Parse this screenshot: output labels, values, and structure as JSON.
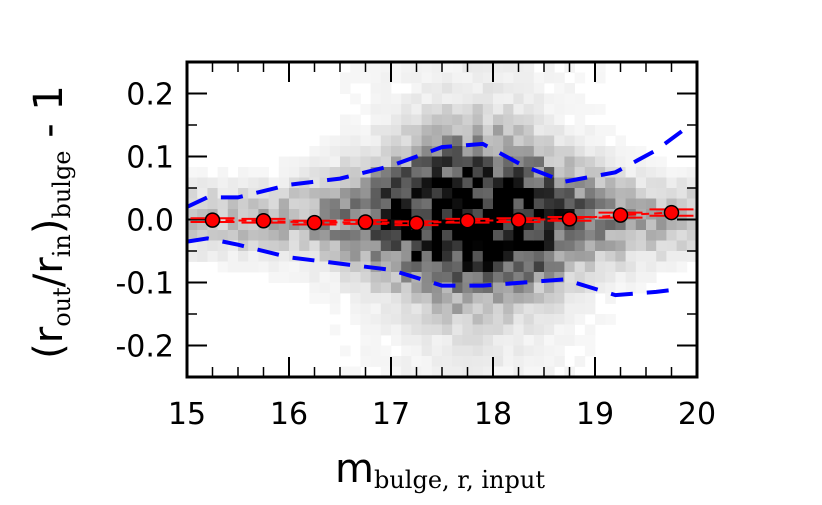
{
  "chart_data": {
    "type": "scatter",
    "title": "",
    "xlabel": {
      "main": "m",
      "sub": "bulge, r, input"
    },
    "ylabel": {
      "open": "(r",
      "sub1": "out",
      "slash": "/r",
      "sub2": "in",
      "close": ")",
      "sub3": "bulge",
      "tail": " - 1"
    },
    "xlim": [
      15,
      20
    ],
    "ylim": [
      -0.25,
      0.25
    ],
    "xticks": [
      15,
      16,
      17,
      18,
      19,
      20
    ],
    "xtick_labels": [
      "15",
      "16",
      "17",
      "18",
      "19",
      "20"
    ],
    "yticks": [
      0.2,
      0.1,
      0.0,
      -0.1,
      -0.2
    ],
    "ytick_labels": [
      "0.2",
      "0.1",
      "0.0",
      "-0.1",
      "-0.2"
    ],
    "grid": false,
    "background_density": {
      "description_colormap": "greyscale",
      "x_bins": 50,
      "y_bins": 30
    },
    "series": [
      {
        "style": "red markers with error bars",
        "color": "#ff0000",
        "x": [
          15.25,
          15.75,
          16.25,
          16.75,
          17.25,
          17.75,
          18.25,
          18.75,
          19.25,
          19.75
        ],
        "y": [
          -0.001,
          -0.002,
          -0.005,
          -0.004,
          -0.006,
          -0.002,
          -0.001,
          0.001,
          0.007,
          0.011
        ],
        "yerr": [
          0.003,
          0.003,
          0.003,
          0.003,
          0.003,
          0.003,
          0.003,
          0.003,
          0.004,
          0.005
        ]
      },
      {
        "style": "blue dashed upper envelope",
        "color": "#0000ff",
        "x": [
          15.0,
          15.2,
          15.5,
          16.0,
          16.5,
          17.0,
          17.5,
          17.9,
          18.3,
          18.7,
          19.2,
          19.6,
          19.85
        ],
        "y": [
          0.02,
          0.035,
          0.035,
          0.055,
          0.065,
          0.085,
          0.115,
          0.12,
          0.085,
          0.06,
          0.075,
          0.11,
          0.14
        ]
      },
      {
        "style": "blue dashed lower envelope",
        "color": "#0000ff",
        "x": [
          15.0,
          15.2,
          15.5,
          16.0,
          16.5,
          17.0,
          17.5,
          17.9,
          18.3,
          18.7,
          19.2,
          19.6,
          19.85
        ],
        "y": [
          -0.035,
          -0.03,
          -0.04,
          -0.06,
          -0.07,
          -0.08,
          -0.105,
          -0.105,
          -0.1,
          -0.095,
          -0.12,
          -0.115,
          -0.11
        ]
      }
    ],
    "colors": {
      "markers": "#ff0000",
      "envelope": "#0000ff",
      "axes": "#000000"
    }
  }
}
